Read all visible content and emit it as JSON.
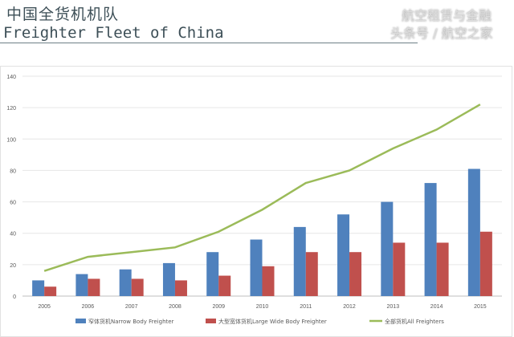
{
  "header": {
    "title_cn": "中国全货机机队",
    "title_en": "Freighter Fleet of China"
  },
  "chart_data": {
    "type": "bar",
    "title": "",
    "categories": [
      "2005",
      "2006",
      "2007",
      "2008",
      "2009",
      "2010",
      "2011",
      "2012",
      "2013",
      "2014",
      "2015"
    ],
    "ylim": [
      0,
      140
    ],
    "yticks": [
      0,
      20,
      40,
      60,
      80,
      100,
      120,
      140
    ],
    "grid": true,
    "legend_position": "bottom",
    "series": [
      {
        "name": "窄体货机Narrow Body Freighter",
        "kind": "bar",
        "color": "#4f81bd",
        "values": [
          10,
          14,
          17,
          21,
          28,
          36,
          44,
          52,
          60,
          72,
          81
        ]
      },
      {
        "name": "大型宽体货机Large Wide Body Freighter",
        "kind": "bar",
        "color": "#c0504d",
        "values": [
          6,
          11,
          11,
          10,
          13,
          19,
          28,
          28,
          34,
          34,
          41
        ]
      },
      {
        "name": "全部货机All Freighters",
        "kind": "line",
        "color": "#9bbb59",
        "values": [
          16,
          25,
          28,
          31,
          41,
          55,
          72,
          80,
          94,
          106,
          122
        ]
      }
    ]
  },
  "watermark": {
    "line1": "航空租赁与金融",
    "line2": "头条号 / 航空之家"
  }
}
